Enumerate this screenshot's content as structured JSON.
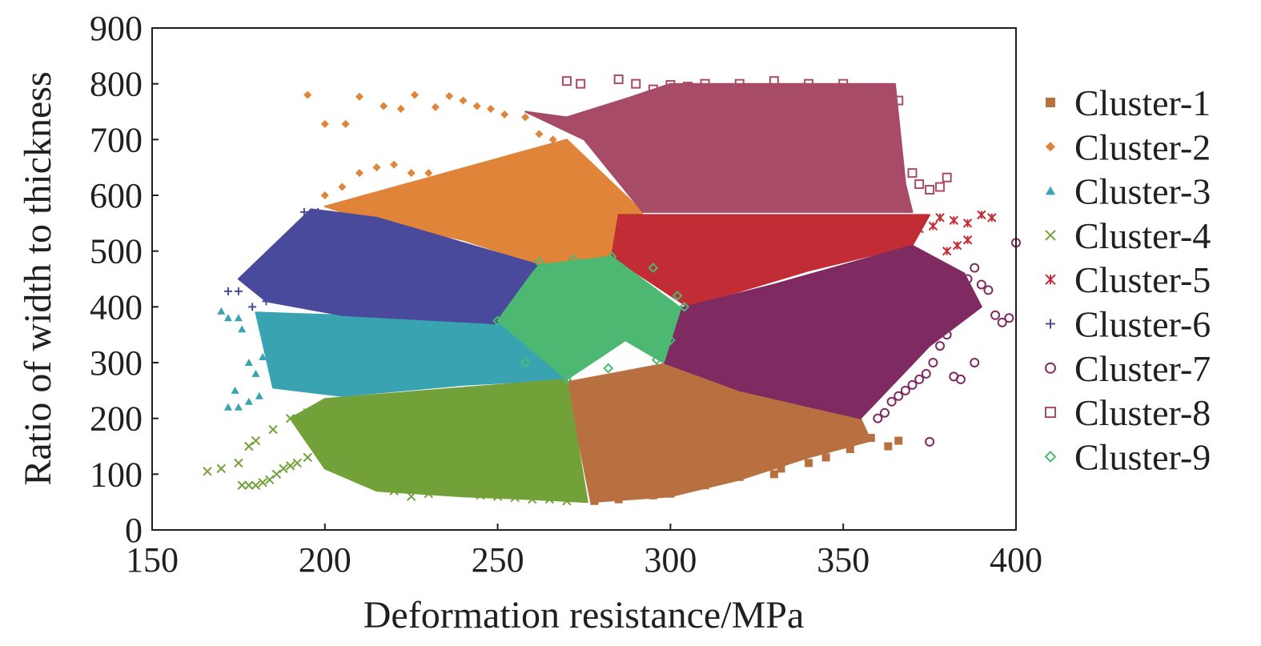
{
  "chart_data": {
    "type": "scatter",
    "xlabel": "Deformation resistance/MPa",
    "ylabel": "Ratio of width to thickness",
    "xlim": [
      150,
      400
    ],
    "ylim": [
      0,
      900
    ],
    "xticks": [
      "150",
      "200",
      "250",
      "300",
      "350",
      "400"
    ],
    "yticks": [
      "0",
      "100",
      "200",
      "300",
      "400",
      "500",
      "600",
      "700",
      "800",
      "900"
    ],
    "grid": false,
    "legend_position": "right",
    "series": [
      {
        "name": "Cluster-1",
        "marker": "square",
        "color": "#b87040",
        "region": [
          [
            270,
            265
          ],
          [
            300,
            300
          ],
          [
            355,
            200
          ],
          [
            358,
            160
          ],
          [
            340,
            130
          ],
          [
            320,
            90
          ],
          [
            300,
            60
          ],
          [
            277,
            50
          ]
        ],
        "points": [
          [
            355,
            178
          ],
          [
            358,
            165
          ],
          [
            352,
            168
          ],
          [
            345,
            160
          ],
          [
            366,
            160
          ],
          [
            363,
            150
          ],
          [
            340,
            120
          ],
          [
            332,
            110
          ],
          [
            320,
            95
          ],
          [
            310,
            80
          ],
          [
            300,
            65
          ],
          [
            295,
            62
          ],
          [
            285,
            55
          ],
          [
            278,
            52
          ],
          [
            330,
            100
          ],
          [
            345,
            130
          ],
          [
            352,
            145
          ]
        ]
      },
      {
        "name": "Cluster-2",
        "marker": "diamond",
        "color": "#e0843a",
        "region": [
          [
            200,
            580
          ],
          [
            270,
            700
          ],
          [
            292,
            570
          ],
          [
            282,
            488
          ],
          [
            262,
            475
          ],
          [
            240,
            520
          ],
          [
            210,
            560
          ]
        ],
        "points": [
          [
            195,
            780
          ],
          [
            200,
            728
          ],
          [
            206,
            728
          ],
          [
            210,
            777
          ],
          [
            217,
            760
          ],
          [
            222,
            755
          ],
          [
            226,
            780
          ],
          [
            232,
            758
          ],
          [
            236,
            778
          ],
          [
            240,
            770
          ],
          [
            244,
            760
          ],
          [
            248,
            755
          ],
          [
            252,
            745
          ],
          [
            258,
            740
          ],
          [
            262,
            710
          ],
          [
            266,
            700
          ],
          [
            205,
            615
          ],
          [
            210,
            640
          ],
          [
            215,
            650
          ],
          [
            220,
            655
          ],
          [
            225,
            640
          ],
          [
            230,
            640
          ],
          [
            200,
            600
          ],
          [
            210,
            590
          ]
        ]
      },
      {
        "name": "Cluster-3",
        "marker": "triangle",
        "color": "#3aa3b2",
        "region": [
          [
            180,
            390
          ],
          [
            250,
            375
          ],
          [
            270,
            270
          ],
          [
            240,
            260
          ],
          [
            205,
            240
          ],
          [
            185,
            255
          ]
        ],
        "points": [
          [
            170,
            392
          ],
          [
            172,
            380
          ],
          [
            175,
            380
          ],
          [
            172,
            220
          ],
          [
            175,
            220
          ],
          [
            178,
            230
          ],
          [
            180,
            280
          ],
          [
            182,
            310
          ],
          [
            176,
            360
          ],
          [
            178,
            300
          ],
          [
            185,
            320
          ],
          [
            187,
            340
          ],
          [
            188,
            290
          ],
          [
            174,
            250
          ],
          [
            181,
            240
          ],
          [
            189,
            260
          ]
        ]
      },
      {
        "name": "Cluster-4",
        "marker": "x",
        "color": "#72a13a",
        "region": [
          [
            200,
            235
          ],
          [
            270,
            270
          ],
          [
            276,
            50
          ],
          [
            260,
            55
          ],
          [
            240,
            60
          ],
          [
            215,
            70
          ],
          [
            200,
            110
          ],
          [
            190,
            200
          ]
        ],
        "points": [
          [
            166,
            105
          ],
          [
            170,
            110
          ],
          [
            175,
            120
          ],
          [
            176,
            80
          ],
          [
            178,
            80
          ],
          [
            180,
            80
          ],
          [
            182,
            85
          ],
          [
            184,
            90
          ],
          [
            186,
            100
          ],
          [
            188,
            110
          ],
          [
            190,
            115
          ],
          [
            192,
            120
          ],
          [
            195,
            130
          ],
          [
            198,
            150
          ],
          [
            200,
            160
          ],
          [
            205,
            170
          ],
          [
            210,
            175
          ],
          [
            220,
            70
          ],
          [
            225,
            60
          ],
          [
            230,
            65
          ],
          [
            235,
            70
          ],
          [
            240,
            68
          ],
          [
            245,
            62
          ],
          [
            250,
            60
          ],
          [
            255,
            58
          ],
          [
            260,
            55
          ],
          [
            265,
            55
          ],
          [
            270,
            52
          ],
          [
            178,
            150
          ],
          [
            180,
            160
          ],
          [
            185,
            180
          ],
          [
            190,
            200
          ],
          [
            195,
            210
          ],
          [
            200,
            220
          ]
        ]
      },
      {
        "name": "Cluster-5",
        "marker": "asterisk",
        "color": "#c22c34",
        "region": [
          [
            285,
            565
          ],
          [
            375,
            565
          ],
          [
            370,
            510
          ],
          [
            340,
            465
          ],
          [
            305,
            400
          ],
          [
            283,
            490
          ]
        ],
        "points": [
          [
            378,
            560
          ],
          [
            382,
            555
          ],
          [
            386,
            550
          ],
          [
            390,
            565
          ],
          [
            393,
            560
          ],
          [
            386,
            520
          ],
          [
            383,
            510
          ],
          [
            380,
            500
          ],
          [
            376,
            545
          ],
          [
            372,
            540
          ]
        ]
      },
      {
        "name": "Cluster-6",
        "marker": "plus",
        "color": "#4a4a9c",
        "region": [
          [
            196,
            575
          ],
          [
            215,
            560
          ],
          [
            262,
            475
          ],
          [
            250,
            370
          ],
          [
            205,
            385
          ],
          [
            183,
            410
          ],
          [
            175,
            450
          ]
        ],
        "points": [
          [
            172,
            428
          ],
          [
            175,
            428
          ],
          [
            178,
            450
          ],
          [
            182,
            460
          ],
          [
            186,
            470
          ],
          [
            190,
            490
          ],
          [
            194,
            570
          ],
          [
            198,
            570
          ],
          [
            202,
            565
          ],
          [
            206,
            555
          ],
          [
            210,
            550
          ],
          [
            214,
            540
          ],
          [
            179,
            400
          ],
          [
            183,
            410
          ],
          [
            187,
            420
          ]
        ]
      },
      {
        "name": "Cluster-7",
        "marker": "circle",
        "color": "#7f2a60",
        "region": [
          [
            303,
            398
          ],
          [
            330,
            440
          ],
          [
            370,
            510
          ],
          [
            385,
            460
          ],
          [
            390,
            400
          ],
          [
            375,
            330
          ],
          [
            355,
            200
          ],
          [
            320,
            250
          ],
          [
            298,
            300
          ],
          [
            287,
            340
          ]
        ],
        "points": [
          [
            400,
            515
          ],
          [
            398,
            380
          ],
          [
            396,
            372
          ],
          [
            394,
            385
          ],
          [
            392,
            430
          ],
          [
            390,
            440
          ],
          [
            388,
            470
          ],
          [
            386,
            450
          ],
          [
            384,
            420
          ],
          [
            382,
            400
          ],
          [
            380,
            350
          ],
          [
            378,
            330
          ],
          [
            376,
            300
          ],
          [
            374,
            280
          ],
          [
            372,
            270
          ],
          [
            370,
            260
          ],
          [
            368,
            250
          ],
          [
            366,
            240
          ],
          [
            364,
            230
          ],
          [
            362,
            210
          ],
          [
            375,
            158
          ],
          [
            382,
            275
          ],
          [
            384,
            270
          ],
          [
            388,
            300
          ],
          [
            360,
            200
          ]
        ]
      },
      {
        "name": "Cluster-8",
        "marker": "open-square",
        "color": "#a84b67",
        "region": [
          [
            258,
            750
          ],
          [
            270,
            740
          ],
          [
            288,
            775
          ],
          [
            300,
            800
          ],
          [
            365,
            800
          ],
          [
            368,
            620
          ],
          [
            370,
            570
          ],
          [
            292,
            570
          ],
          [
            275,
            700
          ]
        ],
        "points": [
          [
            270,
            805
          ],
          [
            274,
            800
          ],
          [
            285,
            808
          ],
          [
            290,
            800
          ],
          [
            295,
            790
          ],
          [
            300,
            798
          ],
          [
            305,
            795
          ],
          [
            310,
            800
          ],
          [
            320,
            800
          ],
          [
            330,
            805
          ],
          [
            340,
            800
          ],
          [
            350,
            800
          ],
          [
            355,
            790
          ],
          [
            358,
            780
          ],
          [
            362,
            765
          ],
          [
            366,
            770
          ],
          [
            370,
            640
          ],
          [
            375,
            610
          ],
          [
            378,
            615
          ],
          [
            380,
            632
          ],
          [
            372,
            620
          ]
        ]
      },
      {
        "name": "Cluster-9",
        "marker": "small-diamond",
        "color": "#4cb871",
        "region": [
          [
            262,
            475
          ],
          [
            283,
            490
          ],
          [
            303,
            398
          ],
          [
            298,
            300
          ],
          [
            287,
            340
          ],
          [
            270,
            270
          ],
          [
            250,
            375
          ],
          [
            260,
            460
          ]
        ],
        "points": [
          [
            262,
            480
          ],
          [
            272,
            485
          ],
          [
            283,
            490
          ],
          [
            295,
            470
          ],
          [
            302,
            420
          ],
          [
            304,
            400
          ],
          [
            300,
            340
          ],
          [
            296,
            305
          ],
          [
            282,
            290
          ],
          [
            270,
            270
          ],
          [
            258,
            300
          ],
          [
            250,
            375
          ]
        ]
      }
    ]
  }
}
